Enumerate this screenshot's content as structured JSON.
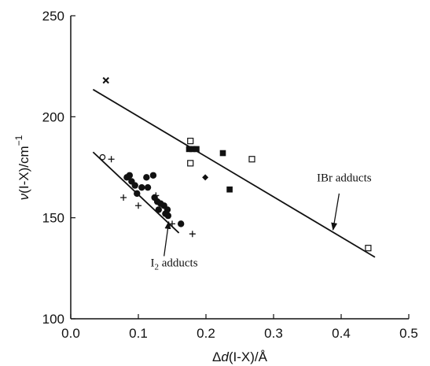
{
  "chart_data": {
    "type": "scatter",
    "title": "",
    "xlabel": {
      "prefix": "Δ",
      "var": "d",
      "rest": "(I-X)/Å"
    },
    "ylabel": {
      "var": "ν",
      "rest": "(I-X)/cm",
      "sup": "−1"
    },
    "xlim": [
      0.0,
      0.5
    ],
    "ylim": [
      100,
      250
    ],
    "xticks": [
      0.0,
      0.1,
      0.2,
      0.3,
      0.4,
      0.5
    ],
    "xtick_labels": [
      "0.0",
      "0.1",
      "0.2",
      "0.3",
      "0.4",
      "0.5"
    ],
    "yticks": [
      100,
      150,
      200,
      250
    ],
    "ytick_labels": [
      "100",
      "150",
      "200",
      "250"
    ],
    "grid": false,
    "series": [
      {
        "marker": "filled-circle",
        "points": [
          [
            0.083,
            170
          ],
          [
            0.087,
            171
          ],
          [
            0.09,
            168
          ],
          [
            0.095,
            166
          ],
          [
            0.098,
            162
          ],
          [
            0.105,
            165
          ],
          [
            0.112,
            170
          ],
          [
            0.114,
            165
          ],
          [
            0.122,
            171
          ],
          [
            0.124,
            160
          ],
          [
            0.128,
            158
          ],
          [
            0.13,
            154
          ],
          [
            0.133,
            157
          ],
          [
            0.138,
            156
          ],
          [
            0.14,
            152
          ],
          [
            0.144,
            151
          ],
          [
            0.143,
            154
          ],
          [
            0.163,
            147
          ]
        ]
      },
      {
        "marker": "plus",
        "points": [
          [
            0.06,
            179
          ],
          [
            0.078,
            160
          ],
          [
            0.1,
            156
          ],
          [
            0.126,
            161
          ],
          [
            0.15,
            147
          ],
          [
            0.18,
            142
          ]
        ]
      },
      {
        "marker": "open-circle",
        "points": [
          [
            0.047,
            180
          ]
        ]
      },
      {
        "marker": "cross",
        "points": [
          [
            0.052,
            218
          ]
        ]
      },
      {
        "marker": "open-square",
        "points": [
          [
            0.177,
            188
          ],
          [
            0.177,
            177
          ],
          [
            0.268,
            179
          ],
          [
            0.44,
            135
          ]
        ]
      },
      {
        "marker": "filled-square",
        "points": [
          [
            0.175,
            184
          ],
          [
            0.18,
            184
          ],
          [
            0.186,
            184
          ],
          [
            0.225,
            182
          ],
          [
            0.235,
            164
          ]
        ]
      },
      {
        "marker": "filled-diamond",
        "points": [
          [
            0.199,
            170
          ]
        ]
      }
    ],
    "fit_lines": [
      {
        "id": "i2",
        "x": [
          0.033,
          0.16
        ],
        "y": [
          182.5,
          142.5
        ]
      },
      {
        "id": "ibr",
        "x": [
          0.033,
          0.45
        ],
        "y": [
          213.5,
          130.5
        ]
      }
    ],
    "annotations": [
      {
        "id": "ibr",
        "text": "IBr adducts",
        "text_at": [
          0.364,
          168
        ],
        "arrow_from": [
          0.397,
          162
        ],
        "arrow_to": [
          0.388,
          144
        ]
      },
      {
        "id": "i2",
        "text_main": "I",
        "text_sub": "2",
        "text_rest": " adducts",
        "text_at": [
          0.118,
          126
        ],
        "arrow_from": [
          0.138,
          131
        ],
        "arrow_to": [
          0.145,
          148
        ]
      }
    ],
    "colors": {
      "ink": "#111111",
      "background": "#ffffff"
    }
  }
}
